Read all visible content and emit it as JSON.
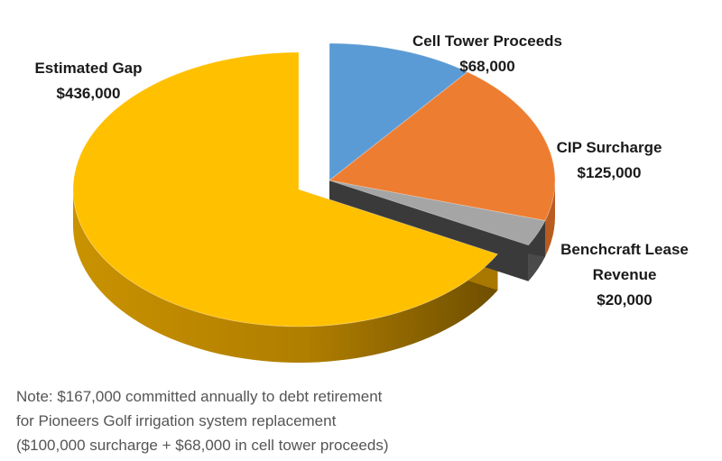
{
  "chart_data": {
    "type": "pie",
    "title": "",
    "exploded": true,
    "slices": [
      {
        "name": "Cell Tower Proceeds",
        "label_lines": [
          "Cell Tower Proceeds",
          "$68,000"
        ],
        "value": 68000,
        "color": "#5B9BD5"
      },
      {
        "name": "CIP Surcharge",
        "label_lines": [
          "CIP Surcharge",
          "$125,000"
        ],
        "value": 125000,
        "color": "#ED7D31"
      },
      {
        "name": "Benchcraft Lease Revenue",
        "label_lines": [
          "Benchcraft Lease",
          "Revenue",
          "$20,000"
        ],
        "value": 20000,
        "color": "#A5A5A5"
      },
      {
        "name": "Estimated Gap",
        "label_lines": [
          "Estimated Gap",
          "$436,000"
        ],
        "value": 436000,
        "color": "#FFC000"
      }
    ]
  },
  "note": {
    "lines": [
      "Note: $167,000 committed annually to debt retirement",
      "for Pioneers Golf irrigation system replacement",
      "($100,000 surcharge + $68,000 in cell tower proceeds)"
    ]
  }
}
